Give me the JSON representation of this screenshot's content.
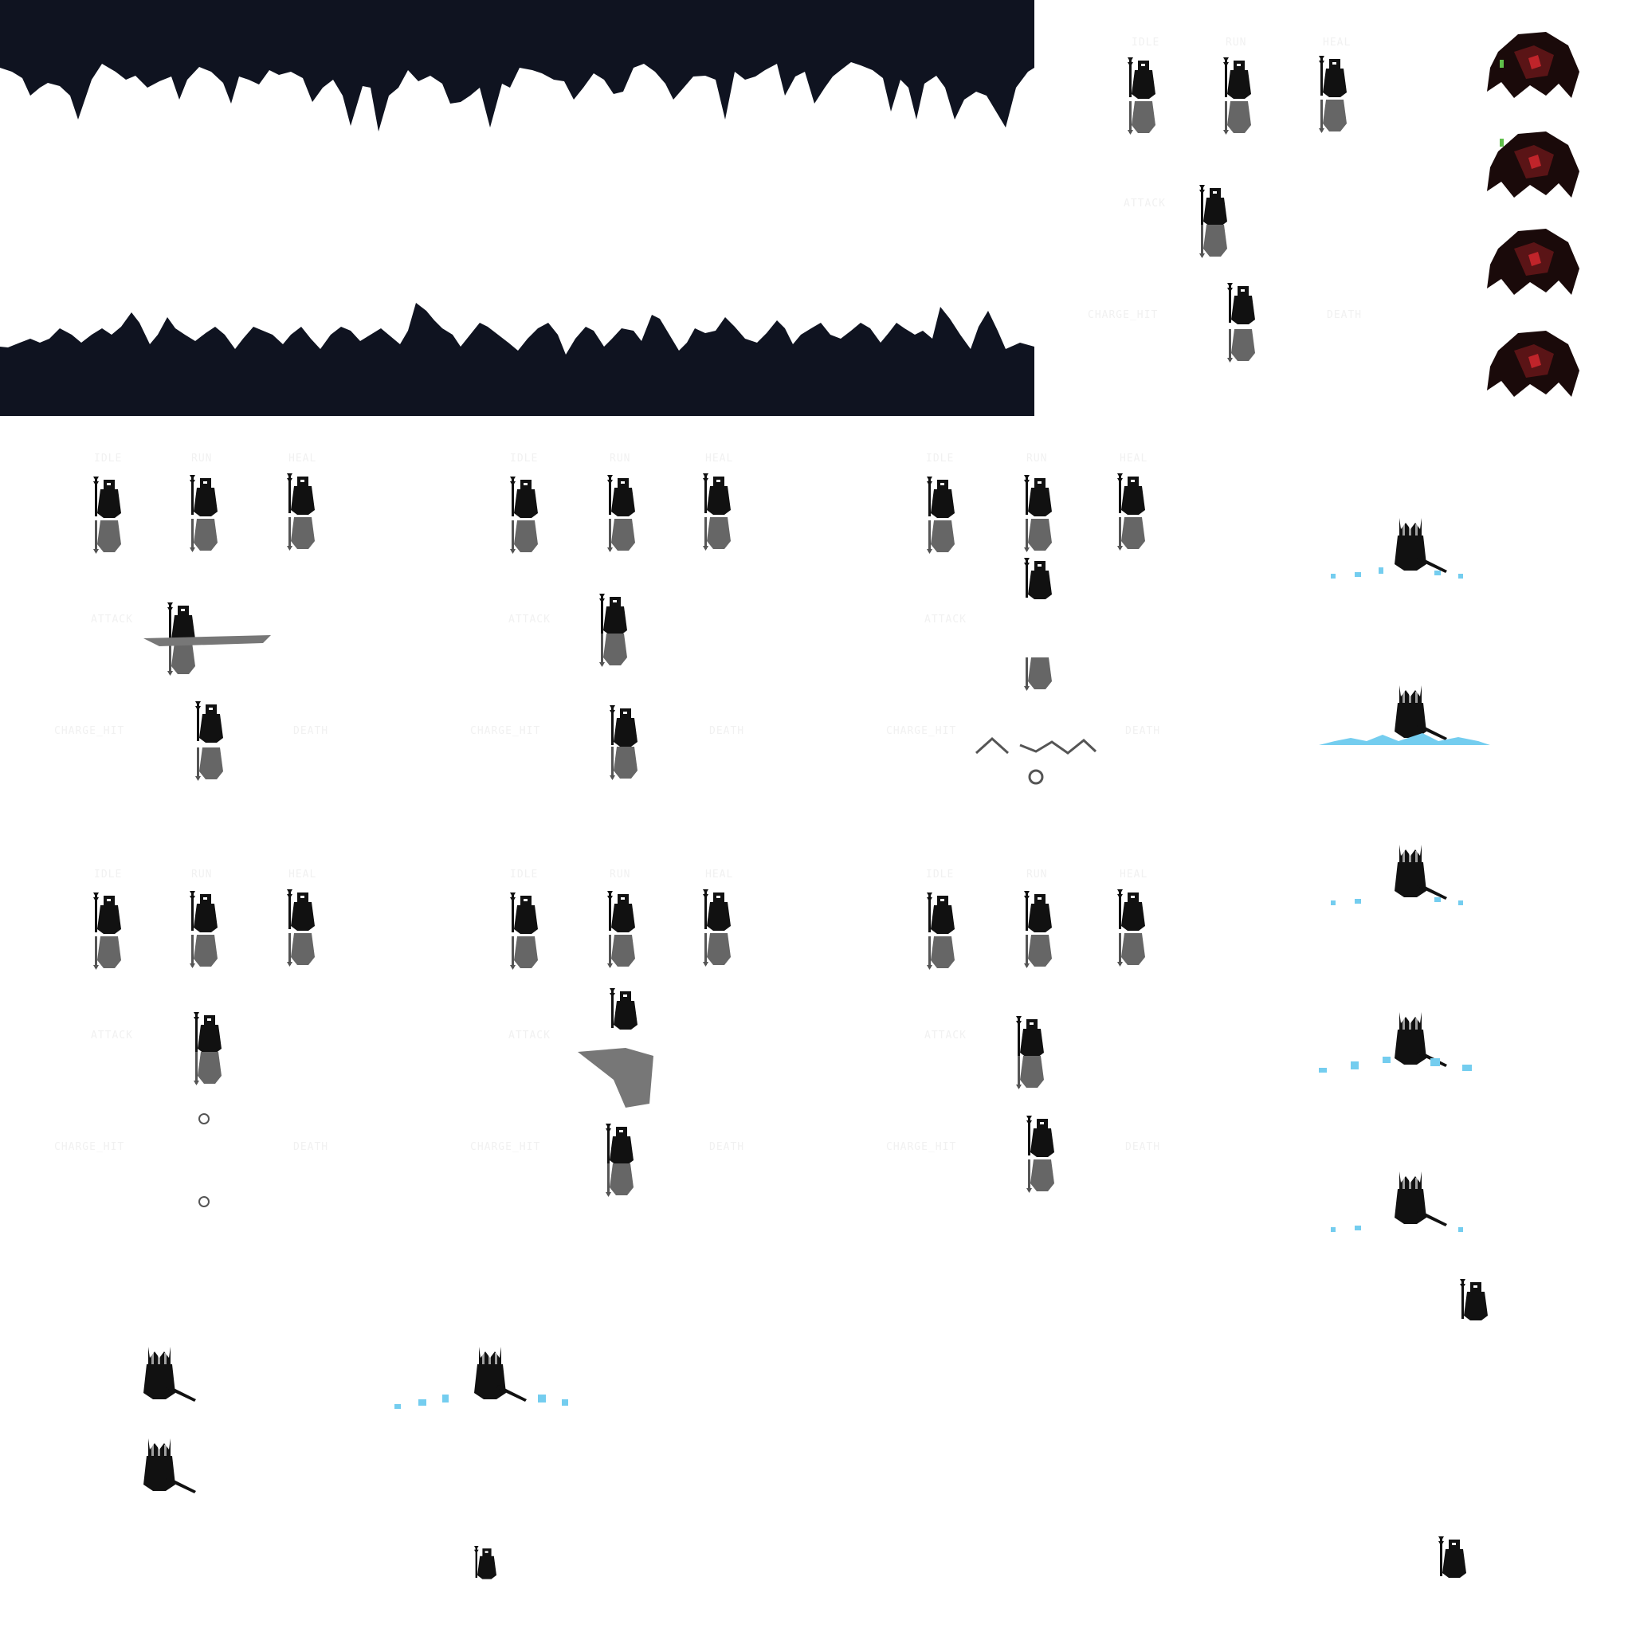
{
  "sheet": {
    "colors": {
      "cave": "#0f1320",
      "sprite": "#111111",
      "shadow": "#666666",
      "ice": "#74cdef",
      "boss_red": "#5a1416",
      "boss_green": "#5fbf4a",
      "label": "#f1f1f1"
    }
  },
  "labels": {
    "idle": "IDLE",
    "run": "RUN",
    "heal": "HEAL",
    "attack": "ATTACK",
    "charge_hit": "CHARGE_HIT",
    "death": "DEATH"
  },
  "sprite_sets": [
    {
      "name": "set-top-right"
    },
    {
      "name": "set-row1-col1"
    },
    {
      "name": "set-row1-col2"
    },
    {
      "name": "set-row1-col3"
    },
    {
      "name": "set-row2-col1"
    },
    {
      "name": "set-row2-col2"
    },
    {
      "name": "set-row2-col3"
    }
  ],
  "boss_frames": 4,
  "ice_frames": 5
}
